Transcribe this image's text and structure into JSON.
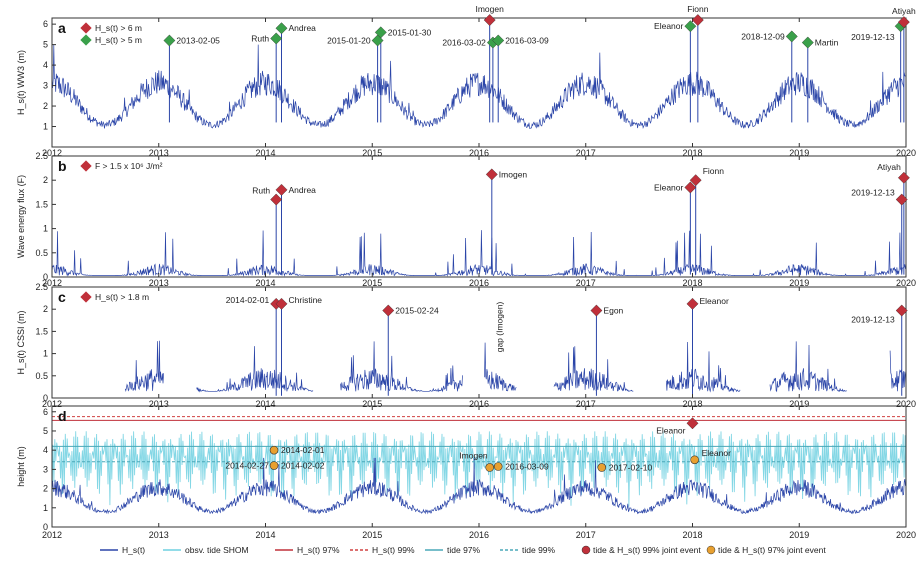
{
  "colors": {
    "series": "#2b45a8",
    "tide": "#6fd0e0",
    "red": "#c0303a",
    "green": "#3aa04a",
    "orange": "#e8a030",
    "dash_red": "#d04040",
    "dash_teal": "#4aa8b8"
  },
  "chart_data": [
    {
      "type": "line",
      "panel": "a",
      "ylabel": "H_s(t) WW3 (m)",
      "ylim": [
        0,
        6.3
      ],
      "yticks": [
        1,
        2,
        3,
        4,
        5,
        6
      ],
      "legend": [
        {
          "text": "H_s(t) > 6 m",
          "marker": "red"
        },
        {
          "text": "H_s(t) > 5 m",
          "marker": "green"
        }
      ],
      "events": [
        {
          "x": 2013.1,
          "y": 5.2,
          "marker": "green",
          "label": "2013-02-05"
        },
        {
          "x": 2014.1,
          "y": 5.3,
          "marker": "green",
          "label": "Ruth"
        },
        {
          "x": 2014.15,
          "y": 5.8,
          "marker": "green",
          "label": "Andrea"
        },
        {
          "x": 2015.05,
          "y": 5.2,
          "marker": "green",
          "label": "2015-01-20"
        },
        {
          "x": 2015.08,
          "y": 5.6,
          "marker": "green",
          "label": "2015-01-30"
        },
        {
          "x": 2016.1,
          "y": 6.2,
          "marker": "red",
          "label": "Imogen"
        },
        {
          "x": 2016.13,
          "y": 5.1,
          "marker": "green",
          "label": "2016-03-02"
        },
        {
          "x": 2016.18,
          "y": 5.2,
          "marker": "green",
          "label": "2016-03-09"
        },
        {
          "x": 2017.98,
          "y": 5.9,
          "marker": "green",
          "label": "Eleanor"
        },
        {
          "x": 2018.05,
          "y": 6.2,
          "marker": "red",
          "label": "Fionn"
        },
        {
          "x": 2018.93,
          "y": 5.4,
          "marker": "green",
          "label": "2018-12-09"
        },
        {
          "x": 2019.08,
          "y": 5.1,
          "marker": "green",
          "label": "Martin"
        },
        {
          "x": 2019.95,
          "y": 5.9,
          "marker": "green",
          "label": "2019-12-13"
        },
        {
          "x": 2019.98,
          "y": 6.1,
          "marker": "red",
          "label": "Atiyah"
        }
      ]
    },
    {
      "type": "line",
      "panel": "b",
      "ylabel": "Wave energy flux (F)",
      "ylim": [
        0,
        2.5
      ],
      "yticks": [
        0,
        0.5,
        1,
        1.5,
        2,
        2.5
      ],
      "legend": [
        {
          "text": "F > 1.5 x 10⁶ J/m²",
          "marker": "red"
        }
      ],
      "events": [
        {
          "x": 2014.1,
          "y": 1.6,
          "marker": "red",
          "label": "Ruth"
        },
        {
          "x": 2014.15,
          "y": 1.8,
          "marker": "red",
          "label": "Andrea"
        },
        {
          "x": 2016.12,
          "y": 2.12,
          "marker": "red",
          "label": "Imogen"
        },
        {
          "x": 2017.98,
          "y": 1.85,
          "marker": "red",
          "label": "Eleanor"
        },
        {
          "x": 2018.03,
          "y": 2.0,
          "marker": "red",
          "label": "Fionn"
        },
        {
          "x": 2019.96,
          "y": 1.6,
          "marker": "red",
          "label": "2019-12-13"
        },
        {
          "x": 2019.98,
          "y": 2.05,
          "marker": "red",
          "label": "Atiyah"
        }
      ]
    },
    {
      "type": "line",
      "panel": "c",
      "ylabel": "H_s(t) CSSI (m)",
      "ylim": [
        0,
        2.5
      ],
      "yticks": [
        0,
        0.5,
        1,
        1.5,
        2,
        2.5
      ],
      "legend": [
        {
          "text": "H_s(t) > 1.8 m",
          "marker": "red"
        }
      ],
      "annotation": "gap (Imogen)",
      "events": [
        {
          "x": 2014.1,
          "y": 2.12,
          "marker": "red",
          "label": "2014-02-01"
        },
        {
          "x": 2014.15,
          "y": 2.12,
          "marker": "red",
          "label": "Christine"
        },
        {
          "x": 2015.15,
          "y": 1.97,
          "marker": "red",
          "label": "2015-02-24"
        },
        {
          "x": 2017.1,
          "y": 1.97,
          "marker": "red",
          "label": "Egon"
        },
        {
          "x": 2018.0,
          "y": 2.12,
          "marker": "red",
          "label": "Eleanor"
        },
        {
          "x": 2019.96,
          "y": 1.97,
          "marker": "red",
          "label": "2019-12-13"
        }
      ]
    },
    {
      "type": "line",
      "panel": "d",
      "ylabel": "height (m)",
      "ylim": [
        0,
        6.3
      ],
      "yticks": [
        0,
        1,
        2,
        3,
        4,
        5,
        6
      ],
      "xlim": [
        2012,
        2020
      ],
      "xticks": [
        2012,
        2013,
        2014,
        2015,
        2016,
        2017,
        2018,
        2019,
        2020
      ],
      "events": [
        {
          "x": 2014.08,
          "y": 4.0,
          "marker": "orange",
          "label": "2014-02-01"
        },
        {
          "x": 2014.08,
          "y": 3.2,
          "marker": "orange",
          "label": "2014-02-02"
        },
        {
          "x": 2014.05,
          "y": 3.2,
          "marker": "none",
          "label": "2014-02-27"
        },
        {
          "x": 2016.1,
          "y": 3.1,
          "marker": "orange",
          "label": "Imogen"
        },
        {
          "x": 2016.18,
          "y": 3.15,
          "marker": "orange",
          "label": "2016-03-09"
        },
        {
          "x": 2017.15,
          "y": 3.1,
          "marker": "orange",
          "label": "2017-02-10"
        },
        {
          "x": 2018.0,
          "y": 5.4,
          "marker": "red",
          "label": "Eleanor"
        },
        {
          "x": 2018.02,
          "y": 3.5,
          "marker": "orange",
          "label": "Eleanor"
        }
      ],
      "hlines": [
        {
          "y": 5.75,
          "style": "dash_red"
        },
        {
          "y": 5.55,
          "style": "solid_red"
        },
        {
          "y": 4.2,
          "style": "solid_teal"
        },
        {
          "y": 3.4,
          "style": "dash_teal"
        }
      ],
      "legend_items": [
        {
          "text": "H_s(t)",
          "style": "line_series"
        },
        {
          "text": "obsv. tide SHOM",
          "style": "line_tide"
        },
        {
          "text": "H_s(t) 97%",
          "style": "solid_red"
        },
        {
          "text": "H_s(t) 99%",
          "style": "dash_red"
        },
        {
          "text": "tide 97%",
          "style": "solid_teal"
        },
        {
          "text": "tide 99%",
          "style": "dash_teal"
        },
        {
          "text": "tide & H_s(t) 99% joint event",
          "style": "dot_red"
        },
        {
          "text": "tide & H_s(t) 97% joint event",
          "style": "dot_orange"
        }
      ]
    }
  ]
}
